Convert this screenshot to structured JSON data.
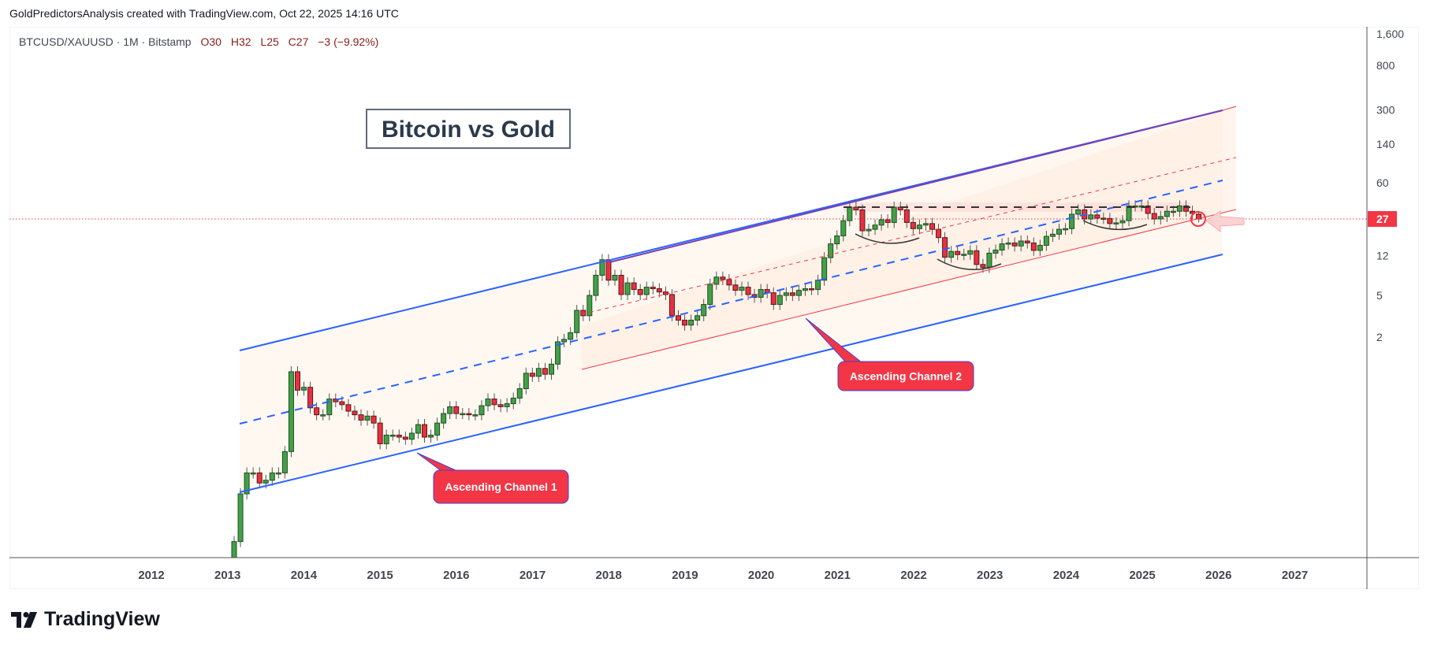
{
  "header": {
    "credit": "GoldPredictorsAnalysis created with TradingView.com, Oct 22, 2025 14:16 UTC",
    "symbol": "BTCUSD/XAUUSD · 1M · Bitstamp",
    "open": "O30",
    "high": "H32",
    "low": "L25",
    "close": "C27",
    "change": "−3 (−9.92%)"
  },
  "branding": {
    "logo_text": "TradingView"
  },
  "colors": {
    "up": "#43a047",
    "down": "#e8313f",
    "channel_blue": "#2962ff",
    "channel_red": "#f23645",
    "badge": "#f23645"
  },
  "annotations": {
    "title": "Bitcoin vs Gold",
    "callout_1": "Ascending Channel 1",
    "callout_2": "Ascending Channel 2"
  },
  "chart_data": {
    "type": "candlestick",
    "title": "Bitcoin vs Gold",
    "series_name": "BTCUSD/XAUUSD",
    "interval": "1M",
    "start_month": "2013-01",
    "y_scale": "log",
    "ylim": [
      0.015,
      1600
    ],
    "y_ticks": [
      "1,600",
      "800",
      "300",
      "140",
      "60",
      "12",
      "5",
      "2"
    ],
    "x_ticks": [
      "2012",
      "2013",
      "2014",
      "2015",
      "2016",
      "2017",
      "2018",
      "2019",
      "2020",
      "2021",
      "2022",
      "2023",
      "2024",
      "2025",
      "2026",
      "2027"
    ],
    "last_price": "27",
    "last_candle": {
      "open": 30,
      "high": 32,
      "low": 25,
      "close": 27
    },
    "closes": [
      0.022,
      0.063,
      0.1,
      0.1,
      0.08,
      0.085,
      0.1,
      0.1,
      0.16,
      0.93,
      0.62,
      0.66,
      0.42,
      0.36,
      0.36,
      0.51,
      0.48,
      0.45,
      0.39,
      0.36,
      0.32,
      0.35,
      0.3,
      0.19,
      0.23,
      0.23,
      0.22,
      0.21,
      0.24,
      0.29,
      0.22,
      0.23,
      0.3,
      0.37,
      0.43,
      0.37,
      0.37,
      0.36,
      0.36,
      0.44,
      0.51,
      0.45,
      0.43,
      0.46,
      0.52,
      0.64,
      0.9,
      0.84,
      1.0,
      0.88,
      1.1,
      1.8,
      1.9,
      2.2,
      3.6,
      3.2,
      5.0,
      7.8,
      11.0,
      7.0,
      7.8,
      5.1,
      6.6,
      5.7,
      5.1,
      6.0,
      5.8,
      5.4,
      5.1,
      3.2,
      2.9,
      2.6,
      2.9,
      3.2,
      4.1,
      6.4,
      7.5,
      7.1,
      6.3,
      5.6,
      6.0,
      5.1,
      4.8,
      5.7,
      5.3,
      4.1,
      5.0,
      5.3,
      5.0,
      5.6,
      5.8,
      5.7,
      7.0,
      11.5,
      15.6,
      18.6,
      26,
      35,
      33,
      20.8,
      21.5,
      23.6,
      26.5,
      25,
      35,
      33,
      25,
      21.8,
      23.6,
      24.4,
      21.5,
      17.9,
      11.6,
      13.2,
      12.3,
      12.4,
      13.4,
      9.9,
      9.3,
      12.7,
      13.6,
      15.6,
      15.9,
      14.9,
      16.6,
      15.9,
      13.5,
      15.1,
      18.4,
      19.3,
      21.5,
      21.8,
      30,
      33,
      27,
      29.5,
      27.5,
      27.3,
      24.4,
      24.8,
      26,
      36,
      36,
      36,
      30.5,
      27,
      28.5,
      32,
      32,
      36,
      32,
      30.5,
      27
    ],
    "overlays": [
      "Ascending Channel 1 (blue, with dashed midline)",
      "Ascending Channel 2 (red, with dashed midline)",
      "Horizontal resistance ~36",
      "Three rounded-bottom arcs"
    ]
  }
}
